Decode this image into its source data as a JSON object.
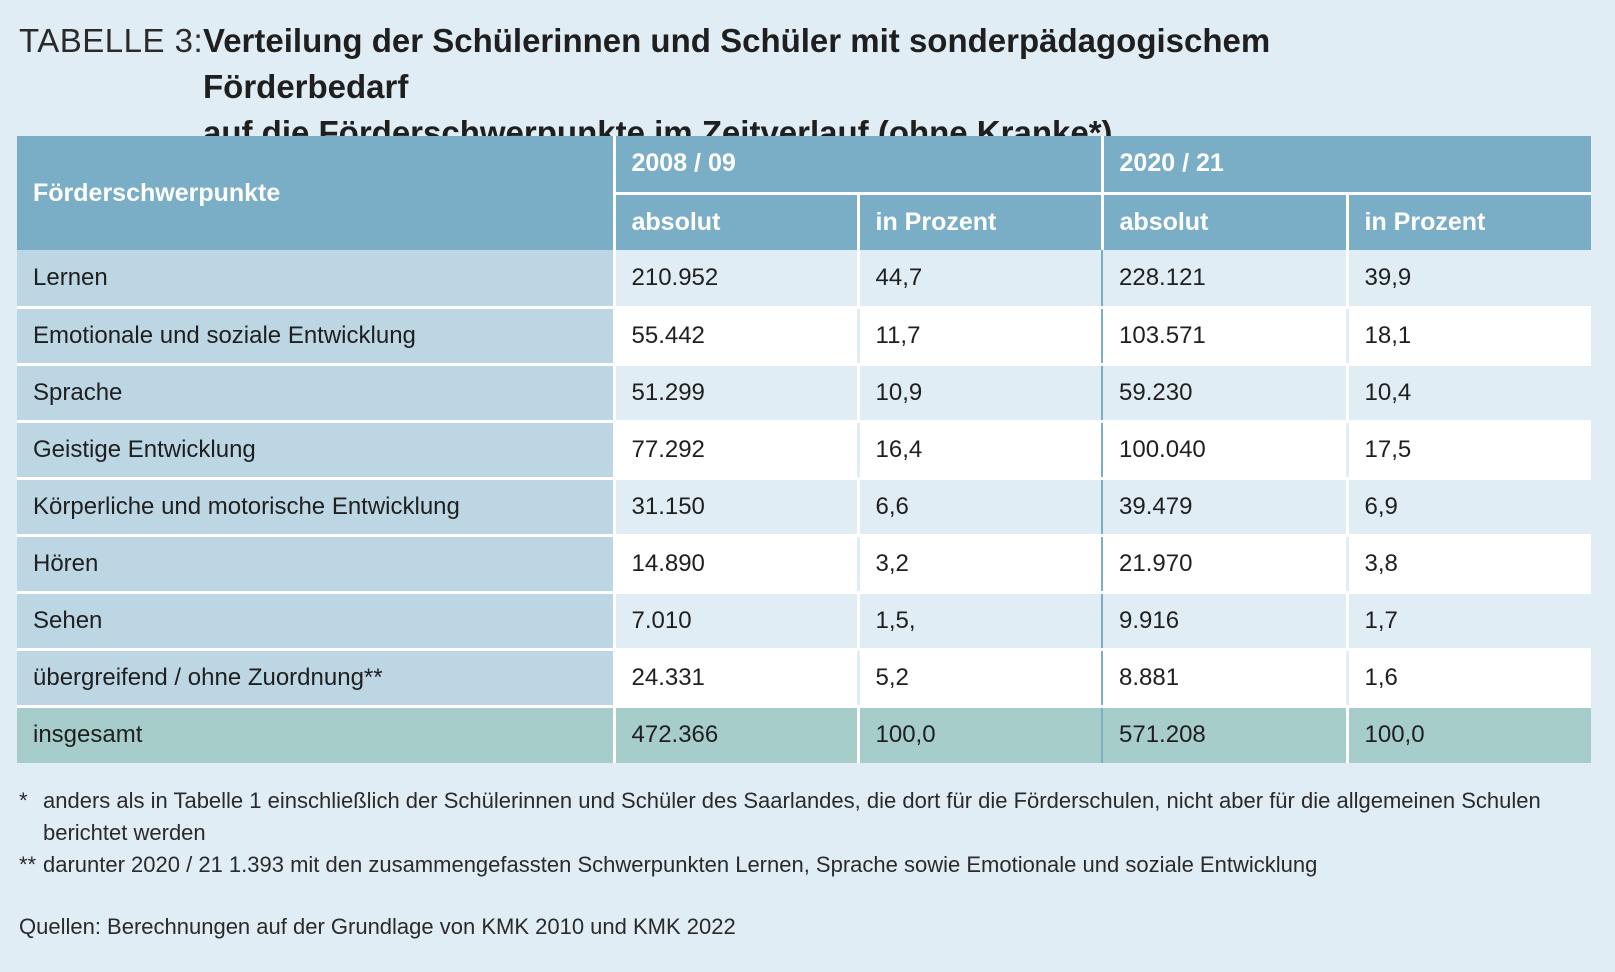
{
  "title": {
    "label": "TABELLE 3:",
    "line1": "Verteilung der Schülerinnen und Schüler mit sonderpädagogischem Förderbedarf",
    "line2": "auf die Förderschwerpunkte im Zeitverlauf (ohne Kranke*)"
  },
  "table": {
    "header": {
      "first_col": "Förderschwerpunkte",
      "period1": "2008 / 09",
      "period2": "2020 / 21",
      "abs1": "absolut",
      "pct1": "in Prozent",
      "abs2": "absolut",
      "pct2": "in Prozent"
    },
    "rows": [
      {
        "label": "Lernen",
        "abs1": "210.952",
        "pct1": "44,7",
        "abs2": "228.121",
        "pct2": "39,9"
      },
      {
        "label": "Emotionale und soziale Entwicklung",
        "abs1": "55.442",
        "pct1": "11,7",
        "abs2": "103.571",
        "pct2": "18,1"
      },
      {
        "label": "Sprache",
        "abs1": "51.299",
        "pct1": "10,9",
        "abs2": "59.230",
        "pct2": "10,4"
      },
      {
        "label": "Geistige Entwicklung",
        "abs1": "77.292",
        "pct1": "16,4",
        "abs2": "100.040",
        "pct2": "17,5"
      },
      {
        "label": "Körperliche und motorische Entwicklung",
        "abs1": "31.150",
        "pct1": "6,6",
        "abs2": "39.479",
        "pct2": "6,9"
      },
      {
        "label": "Hören",
        "abs1": "14.890",
        "pct1": "3,2",
        "abs2": "21.970",
        "pct2": "3,8"
      },
      {
        "label": "Sehen",
        "abs1": "7.010",
        "pct1": "1,5,",
        "abs2": "9.916",
        "pct2": "1,7"
      },
      {
        "label": "übergreifend / ohne Zuordnung**",
        "abs1": "24.331",
        "pct1": "5,2",
        "abs2": "8.881",
        "pct2": "1,6"
      }
    ],
    "total": {
      "label": "insgesamt",
      "abs1": "472.366",
      "pct1": "100,0",
      "abs2": "571.208",
      "pct2": "100,0"
    }
  },
  "footnotes": {
    "fn1_mark": "*",
    "fn1_text": "anders als in Tabelle 1 einschließlich der Schülerinnen und Schüler des Saarlandes, die dort für die Förderschulen, nicht aber für die allgemeinen Schulen berichtet werden",
    "fn2_mark": "**",
    "fn2_text": "darunter 2020 / 21 1.393 mit den zusammengefassten Schwerpunkten Lernen, Sprache sowie Emotionale und soziale Entwicklung",
    "source": "Quellen: Berechnungen auf der Grundlage von KMK 2010 und KMK 2022"
  }
}
